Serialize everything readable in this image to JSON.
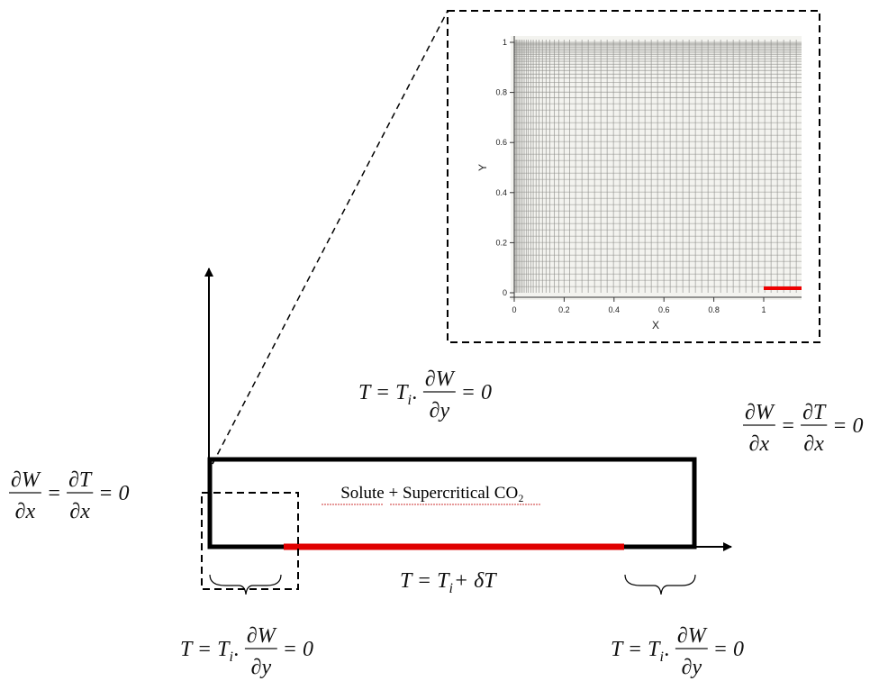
{
  "label": "Solute + Supercritical CO₂",
  "equations": [
    {
      "tokens": [
        "T =",
        {
          "base": "T",
          "sub": "i"
        },
        ".",
        {
          "num": "∂W",
          "den": "∂y"
        },
        "= 0"
      ]
    },
    {
      "tokens": [
        {
          "num": "∂W",
          "den": "∂x"
        },
        "=",
        {
          "num": "∂T",
          "den": "∂x"
        },
        "= 0"
      ]
    },
    {
      "tokens": [
        {
          "num": "∂W",
          "den": "∂x"
        },
        "=",
        {
          "num": "∂T",
          "den": "∂x"
        },
        "= 0"
      ]
    },
    {
      "tokens": [
        "T =",
        {
          "base": "T",
          "sub": "i"
        },
        "+ δT"
      ]
    },
    {
      "tokens": [
        "T =",
        {
          "base": "T",
          "sub": "i"
        },
        ".",
        {
          "num": "∂W",
          "den": "∂y"
        },
        "= 0"
      ]
    },
    {
      "tokens": [
        "T =",
        {
          "base": "T",
          "sub": "i"
        },
        ".",
        {
          "num": "∂W",
          "den": "∂y"
        },
        "= 0"
      ]
    }
  ],
  "inset": {
    "x_label": "X",
    "y_label": "Y",
    "xticks": [
      0,
      0.2,
      0.4,
      0.6,
      0.8,
      1
    ],
    "yticks": [
      0,
      0.2,
      0.4,
      0.6,
      0.8,
      1
    ]
  }
}
